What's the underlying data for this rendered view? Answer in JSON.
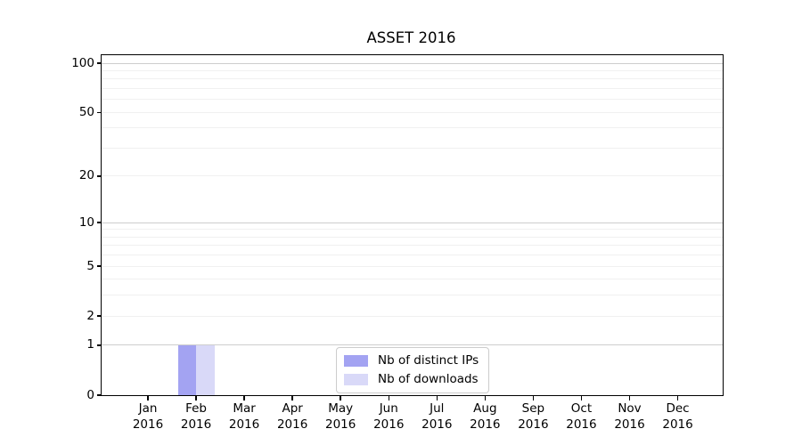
{
  "chart_data": {
    "type": "bar",
    "title": "ASSET 2016",
    "categories": [
      "Jan",
      "Feb",
      "Mar",
      "Apr",
      "May",
      "Jun",
      "Jul",
      "Aug",
      "Sep",
      "Oct",
      "Nov",
      "Dec"
    ],
    "year_label": "2016",
    "series": [
      {
        "name": "Nb of distinct IPs",
        "color": "#a3a3f2",
        "values": [
          0,
          1,
          0,
          0,
          0,
          0,
          0,
          0,
          0,
          0,
          0,
          0
        ]
      },
      {
        "name": "Nb of downloads",
        "color": "#d9d9f8",
        "values": [
          0,
          1,
          0,
          0,
          0,
          0,
          0,
          0,
          0,
          0,
          0,
          0
        ]
      }
    ],
    "y_axis": {
      "scale": "log10(1+y)",
      "tick_values": [
        0,
        1,
        2,
        5,
        10,
        20,
        50,
        100
      ],
      "major_gridlines": [
        1,
        10,
        100
      ],
      "minor_gridlines": [
        2,
        3,
        4,
        5,
        6,
        7,
        8,
        9,
        20,
        30,
        40,
        50,
        60,
        70,
        80,
        90
      ],
      "range": [
        0,
        112
      ]
    },
    "legend": {
      "position": "lower center",
      "entries": [
        "Nb of distinct IPs",
        "Nb of downloads"
      ]
    },
    "grid": true
  },
  "colors": {
    "background": "#ffffff",
    "axis": "#000000",
    "major_grid": "#cdcdcd",
    "minor_grid": "#f0f0f0",
    "legend_border": "#cccccc",
    "text": "#000000"
  }
}
